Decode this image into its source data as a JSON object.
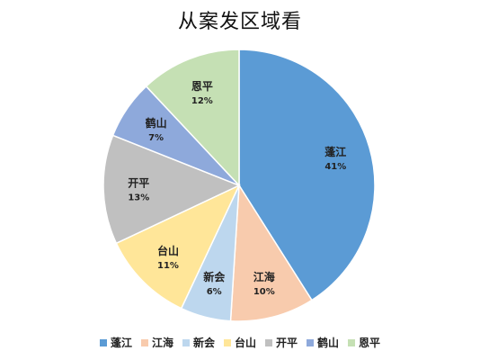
{
  "chart_data": {
    "type": "pie",
    "title": "从案发区域看",
    "legend_position": "bottom",
    "slices": [
      {
        "label": "蓬江",
        "value": 41,
        "pct_label": "41%",
        "color": "#5B9BD5"
      },
      {
        "label": "江海",
        "value": 10,
        "pct_label": "10%",
        "color": "#F8CBAD"
      },
      {
        "label": "新会",
        "value": 6,
        "pct_label": "6%",
        "color": "#BDD7EE"
      },
      {
        "label": "台山",
        "value": 11,
        "pct_label": "11%",
        "color": "#FFE699"
      },
      {
        "label": "开平",
        "value": 13,
        "pct_label": "13%",
        "color": "#C0C0C0"
      },
      {
        "label": "鹤山",
        "value": 7,
        "pct_label": "7%",
        "color": "#8EA9DB"
      },
      {
        "label": "恩平",
        "value": 12,
        "pct_label": "12%",
        "color": "#C5E0B4"
      }
    ]
  }
}
